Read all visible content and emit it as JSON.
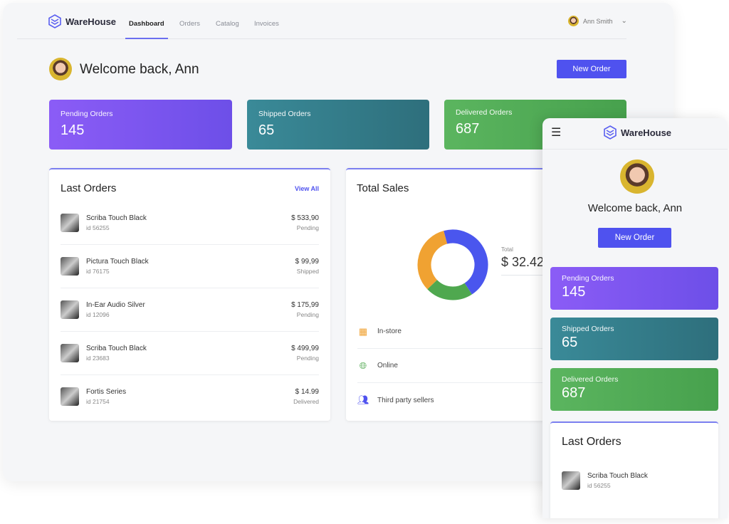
{
  "brand": "WareHouse",
  "nav": {
    "tabs": [
      "Dashboard",
      "Orders",
      "Catalog",
      "Invoices"
    ],
    "user": "Ann Smith"
  },
  "welcome": "Welcome back, Ann",
  "new_order": "New Order",
  "stats": [
    {
      "label": "Pending Orders",
      "value": "145"
    },
    {
      "label": "Shipped Orders",
      "value": "65"
    },
    {
      "label": "Delivered Orders",
      "value": "687"
    }
  ],
  "last_orders": {
    "title": "Last Orders",
    "view_all": "View All",
    "items": [
      {
        "name": "Scriba Touch Black",
        "id": "id 56255",
        "price": "$ 533,90",
        "status": "Pending"
      },
      {
        "name": "Pictura Touch Black",
        "id": "id 76175",
        "price": "$ 99,99",
        "status": "Shipped"
      },
      {
        "name": "In-Ear Audio Silver",
        "id": "id 12096",
        "price": "$ 175,99",
        "status": "Pending"
      },
      {
        "name": "Scriba Touch Black",
        "id": "id 23683",
        "price": "$ 499,99",
        "status": "Pending"
      },
      {
        "name": "Fortis Series",
        "id": "id 21754",
        "price": "$ 14.99",
        "status": "Delivered"
      }
    ]
  },
  "total_sales": {
    "title": "Total Sales",
    "total_label": "Total",
    "total_value": "$ 32.42",
    "segments": [
      {
        "name": "Online",
        "fraction": 0.45,
        "color": "#4a56ee"
      },
      {
        "name": "In-store",
        "fraction": 0.22,
        "color": "#4fa84f"
      },
      {
        "name": "Third party sellers",
        "fraction": 0.33,
        "color": "#f0a232"
      }
    ],
    "legend": [
      "In-store",
      "Online",
      "Third party sellers"
    ]
  }
}
